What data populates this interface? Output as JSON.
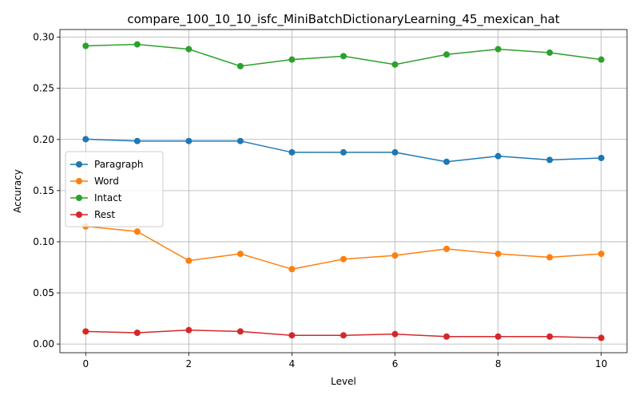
{
  "chart_data": {
    "type": "line",
    "title": "compare_100_10_10_isfc_MiniBatchDictionaryLearning_45_mexican_hat",
    "xlabel": "Level",
    "ylabel": "Accuracy",
    "xlim": [
      -0.5,
      10.5
    ],
    "ylim": [
      -0.0085,
      0.3075
    ],
    "xticks": [
      0,
      2,
      4,
      6,
      8,
      10
    ],
    "xtick_labels": [
      "0",
      "2",
      "4",
      "6",
      "8",
      "10"
    ],
    "yticks": [
      0.0,
      0.05,
      0.1,
      0.15,
      0.2,
      0.25,
      0.3
    ],
    "ytick_labels": [
      "0.00",
      "0.05",
      "0.10",
      "0.15",
      "0.20",
      "0.25",
      "0.30"
    ],
    "grid": true,
    "legend_position": "center-left",
    "x": [
      0,
      1,
      2,
      3,
      4,
      5,
      6,
      7,
      8,
      9,
      10
    ],
    "series": [
      {
        "name": "Paragraph",
        "color": "#1f77b4",
        "values": [
          0.2003,
          0.1985,
          0.1985,
          0.1985,
          0.1874,
          0.1874,
          0.1874,
          0.1782,
          0.1837,
          0.18,
          0.1819
        ]
      },
      {
        "name": "Word",
        "color": "#ff7f0e",
        "values": [
          0.115,
          0.11,
          0.0815,
          0.0882,
          0.0732,
          0.083,
          0.0866,
          0.093,
          0.0882,
          0.0848,
          0.0882
        ]
      },
      {
        "name": "Intact",
        "color": "#2ca02c",
        "values": [
          0.2915,
          0.293,
          0.2883,
          0.2717,
          0.2781,
          0.2815,
          0.2733,
          0.2831,
          0.2883,
          0.2849,
          0.2781
        ]
      },
      {
        "name": "Rest",
        "color": "#d62728",
        "values": [
          0.0123,
          0.011,
          0.0136,
          0.0123,
          0.0085,
          0.0085,
          0.0097,
          0.0073,
          0.0073,
          0.0073,
          0.006
        ]
      }
    ]
  }
}
